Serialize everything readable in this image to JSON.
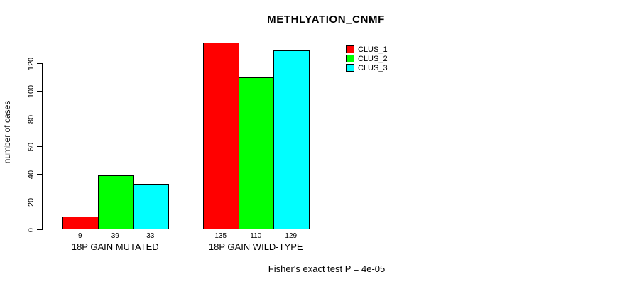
{
  "page": {
    "background": "#FFFFFF",
    "text_color": "#000000",
    "axis_color": "#000000"
  },
  "chart_data": {
    "type": "bar",
    "title": "METHLYATION_CNMF",
    "ylabel": "number of cases",
    "xlabel": "",
    "categories": [
      "18P GAIN MUTATED",
      "18P GAIN WILD-TYPE"
    ],
    "series": [
      {
        "name": "CLUS_1",
        "color": "#FF0000",
        "values": [
          9,
          135
        ]
      },
      {
        "name": "CLUS_2",
        "color": "#00FF00",
        "values": [
          39,
          110
        ]
      },
      {
        "name": "CLUS_3",
        "color": "#00FFFF",
        "values": [
          33,
          129
        ]
      }
    ],
    "bar_value_labels": [
      [
        "9",
        "39",
        "33"
      ],
      [
        "135",
        "110",
        "129"
      ]
    ],
    "yticks": [
      0,
      20,
      40,
      60,
      80,
      100,
      120
    ],
    "ylim": [
      0,
      135
    ],
    "grid": false,
    "legend_position": "top-right",
    "legend": [
      "CLUS_1",
      "CLUS_2",
      "CLUS_3"
    ],
    "annotation": "Fisher's exact test P = 4e-05",
    "bar_border_color": "#000000"
  }
}
